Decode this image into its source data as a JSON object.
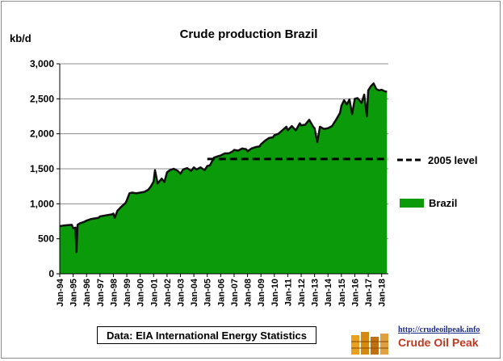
{
  "chart_data": {
    "type": "area",
    "title": "Crude  production Brazil",
    "ylabel": "kb/d",
    "xlabel": "",
    "ylim": [
      0,
      3000
    ],
    "yticks": [
      "0",
      "500",
      "1,000",
      "1,500",
      "2,000",
      "2,500",
      "3,000"
    ],
    "ytick_values": [
      0,
      500,
      1000,
      1500,
      2000,
      2500,
      3000
    ],
    "xlim": [
      1994.0,
      2018.5
    ],
    "xticks": [
      "Jan-94",
      "Jan-95",
      "Jan-96",
      "Jan-97",
      "Jan-98",
      "Jan-99",
      "Jan-00",
      "Jan-01",
      "Jan-02",
      "Jan-03",
      "Jan-04",
      "Jan-05",
      "Jan-06",
      "Jan-07",
      "Jan-08",
      "Jan-09",
      "Jan-10",
      "Jan-11",
      "Jan-12",
      "Jan-13",
      "Jan-14",
      "Jan-15",
      "Jan-16",
      "Jan-17",
      "Jan-18"
    ],
    "grid": "horizontal",
    "legend_placement": "right",
    "series": [
      {
        "name": "Brazil",
        "type": "area",
        "color": "#0a9a0a",
        "x": [
          1994.0,
          1994.3,
          1994.6,
          1994.9,
          1995.0,
          1995.17,
          1995.25,
          1995.33,
          1995.5,
          1995.8,
          1996.0,
          1996.3,
          1996.6,
          1996.9,
          1997.0,
          1997.3,
          1997.6,
          1997.9,
          1998.0,
          1998.1,
          1998.3,
          1998.6,
          1998.9,
          1999.0,
          1999.2,
          1999.4,
          1999.7,
          2000.0,
          2000.3,
          2000.6,
          2000.8,
          2001.0,
          2001.1,
          2001.3,
          2001.6,
          2001.8,
          2002.0,
          2002.2,
          2002.5,
          2002.8,
          2003.0,
          2003.2,
          2003.5,
          2003.8,
          2004.0,
          2004.2,
          2004.5,
          2004.8,
          2005.0,
          2005.2,
          2005.5,
          2005.8,
          2006.0,
          2006.3,
          2006.6,
          2006.9,
          2007.0,
          2007.3,
          2007.6,
          2007.9,
          2008.0,
          2008.3,
          2008.6,
          2008.9,
          2009.0,
          2009.3,
          2009.6,
          2009.9,
          2010.0,
          2010.3,
          2010.6,
          2010.9,
          2011.0,
          2011.3,
          2011.6,
          2011.9,
          2012.0,
          2012.3,
          2012.6,
          2012.9,
          2013.0,
          2013.2,
          2013.4,
          2013.7,
          2014.0,
          2014.3,
          2014.6,
          2014.9,
          2015.0,
          2015.2,
          2015.4,
          2015.6,
          2015.8,
          2016.0,
          2016.2,
          2016.5,
          2016.7,
          2016.9,
          2017.0,
          2017.2,
          2017.4,
          2017.6,
          2017.8,
          2018.0,
          2018.2,
          2018.4
        ],
        "y": [
          680,
          690,
          695,
          700,
          650,
          660,
          310,
          700,
          720,
          740,
          760,
          780,
          790,
          800,
          820,
          830,
          840,
          850,
          860,
          800,
          900,
          960,
          1010,
          1050,
          1150,
          1160,
          1150,
          1160,
          1170,
          1200,
          1250,
          1320,
          1480,
          1290,
          1360,
          1310,
          1450,
          1480,
          1500,
          1470,
          1430,
          1490,
          1510,
          1470,
          1520,
          1490,
          1520,
          1480,
          1540,
          1550,
          1660,
          1680,
          1690,
          1720,
          1720,
          1750,
          1770,
          1760,
          1790,
          1780,
          1750,
          1790,
          1810,
          1820,
          1850,
          1900,
          1940,
          1950,
          1980,
          2000,
          2050,
          2100,
          2050,
          2110,
          2050,
          2150,
          2120,
          2130,
          2200,
          2100,
          2080,
          1880,
          2100,
          2070,
          2080,
          2110,
          2200,
          2300,
          2400,
          2480,
          2420,
          2490,
          2280,
          2500,
          2510,
          2440,
          2560,
          2250,
          2620,
          2680,
          2720,
          2640,
          2620,
          2630,
          2610,
          2600
        ]
      },
      {
        "name": "2005 level",
        "type": "line",
        "style": "dashed",
        "color": "#000000",
        "x": [
          2005.0,
          2018.5
        ],
        "y": [
          1640,
          1640
        ]
      }
    ],
    "source": "Data: EIA International Energy Statistics"
  },
  "logo": {
    "url": "http://crudeoilpeak.info",
    "name": "Crude Oil Peak"
  }
}
